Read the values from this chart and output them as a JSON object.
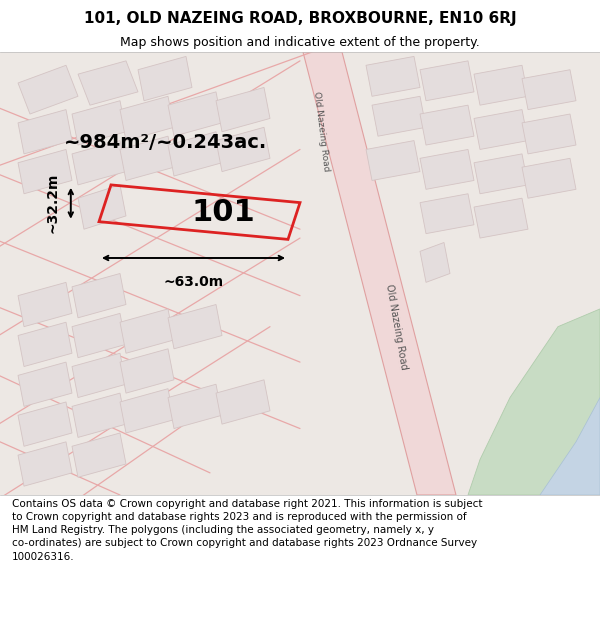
{
  "title_line1": "101, OLD NAZEING ROAD, BROXBOURNE, EN10 6RJ",
  "title_line2": "Map shows position and indicative extent of the property.",
  "footer_line1": "Contains OS data © Crown copyright and database right 2021. This information is subject",
  "footer_line2": "to Crown copyright and database rights 2023 and is reproduced with the permission of",
  "footer_line3": "HM Land Registry. The polygons (including the associated geometry, namely x, y",
  "footer_line4": "co-ordinates) are subject to Crown copyright and database rights 2023 Ordnance Survey",
  "footer_line5": "100026316.",
  "area_text": "~984m²/~0.243ac.",
  "label_101": "101",
  "dim_width": "~63.0m",
  "dim_height": "~32.2m",
  "map_bg": "#ede8e4",
  "red_color": "#dd2222",
  "road_fill": "#f0d8d8",
  "road_edge": "#e0a0a0",
  "street_color": "#e8a8a8",
  "building_face": "#e4dddd",
  "building_edge": "#d4c4c4",
  "green_color": "#c8dcc4",
  "blue_color": "#c4d4e4",
  "title_fs": 11,
  "subtitle_fs": 9,
  "footer_fs": 7.5,
  "area_fs": 14,
  "label_fs": 22,
  "dim_fs": 10
}
